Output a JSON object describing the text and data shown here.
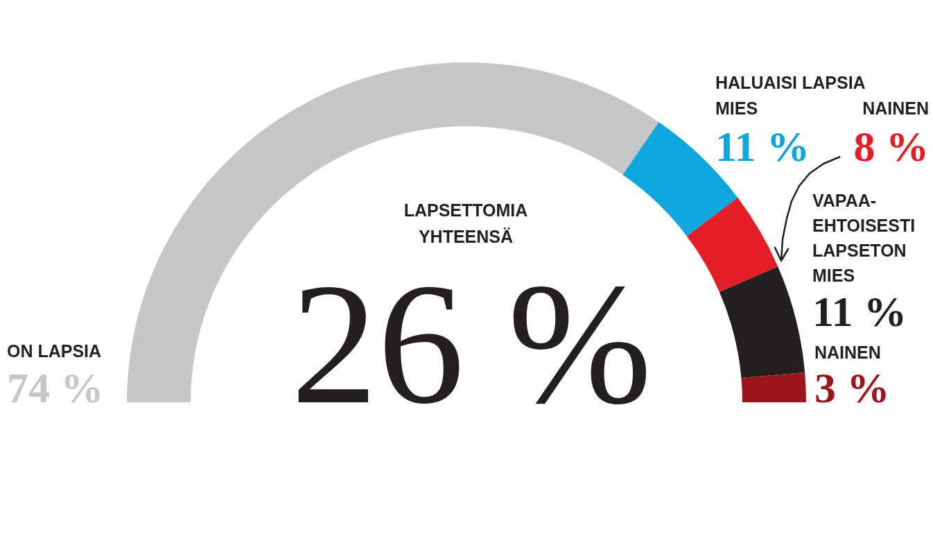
{
  "chart_data": {
    "type": "donut",
    "categories": [
      "ON LAPSIA",
      "MIES",
      "NAINEN",
      "VAPAA-EHTOISESTI LAPSETON MIES",
      "NAINEN"
    ],
    "values": [
      74,
      11,
      8,
      11,
      3
    ],
    "colors": [
      "#c6c7c9",
      "#0fa5dd",
      "#e31e26",
      "#231f20",
      "#9b151b"
    ],
    "value_labels": [
      "74 %",
      "11 %",
      "8 %",
      "11 %",
      "3 %"
    ],
    "annotations": [
      "HALUAISI LAPSIA",
      "LAPSETTOMIA YHTEENSÄ",
      "26 %"
    ]
  }
}
